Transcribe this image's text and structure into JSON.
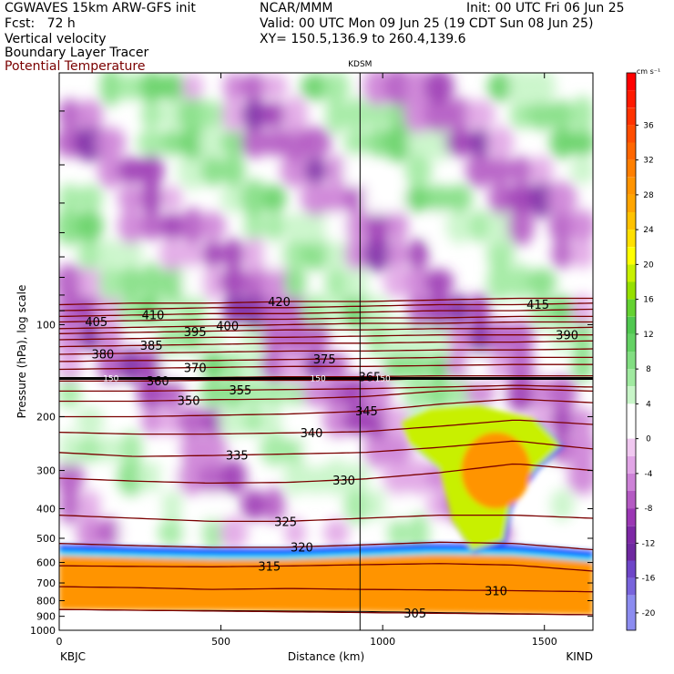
{
  "header": {
    "model": "CGWAVES 15km ARW-GFS init",
    "center": "NCAR/MMM",
    "init": "Init: 00 UTC Fri 06 Jun 25",
    "fcst": "Fcst:   72 h",
    "valid": "Valid: 00 UTC Mon 09 Jun 25 (19 CDT Sun 08 Jun 25)",
    "xy": "XY= 150.5,136.9 to 260.4,139.6",
    "field1": "Vertical velocity",
    "field2": "Boundary Layer Tracer",
    "field3": "Potential Temperature",
    "field3_color": "#7a0000"
  },
  "chart_data": {
    "type": "heatmap",
    "title": "",
    "xlabel": "Distance (km)",
    "ylabel": "Pressure (hPa), log scale",
    "xlim": [
      0,
      1650
    ],
    "ylim": [
      1000,
      15
    ],
    "y_scale": "log",
    "x_ticks": [
      "0",
      "500",
      "1000",
      "1500"
    ],
    "x_tick_values": [
      0,
      500,
      1000,
      1500
    ],
    "y_ticks": [
      "100",
      "200",
      "300",
      "400",
      "500",
      "600",
      "700",
      "800",
      "900",
      "1000"
    ],
    "y_tick_values": [
      100,
      200,
      300,
      400,
      500,
      600,
      700,
      800,
      900,
      1000
    ],
    "endpoint_left": "KBJC",
    "endpoint_right": "KIND",
    "marker": {
      "label": "KDSM",
      "distance_km": 930
    },
    "colorbar": {
      "unit": "cm s⁻¹",
      "labels": [
        "36",
        "32",
        "28",
        "24",
        "20",
        "16",
        "12",
        "8",
        "4",
        "0",
        "-4",
        "-8",
        "-12",
        "-16",
        "-20"
      ],
      "label_values": [
        36,
        32,
        28,
        24,
        20,
        16,
        12,
        8,
        4,
        0,
        -4,
        -8,
        -12,
        -16,
        -20
      ],
      "bins": [
        {
          "lo": 40,
          "color": "#ff0000"
        },
        {
          "lo": 38,
          "color": "#ff1a00"
        },
        {
          "lo": 36,
          "color": "#ff3300"
        },
        {
          "lo": 34,
          "color": "#ff4d00"
        },
        {
          "lo": 32,
          "color": "#ff6600"
        },
        {
          "lo": 30,
          "color": "#ff7f00"
        },
        {
          "lo": 28,
          "color": "#ff9400"
        },
        {
          "lo": 26,
          "color": "#ffa500"
        },
        {
          "lo": 24,
          "color": "#ffc200"
        },
        {
          "lo": 22,
          "color": "#ffe000"
        },
        {
          "lo": 20,
          "color": "#ffff00"
        },
        {
          "lo": 18,
          "color": "#c8f000"
        },
        {
          "lo": 16,
          "color": "#96e000"
        },
        {
          "lo": 14,
          "color": "#64d232"
        },
        {
          "lo": 12,
          "color": "#50c850"
        },
        {
          "lo": 10,
          "color": "#64d264"
        },
        {
          "lo": 8,
          "color": "#82de82"
        },
        {
          "lo": 6,
          "color": "#a0eaa0"
        },
        {
          "lo": 4,
          "color": "#c8f5c8"
        },
        {
          "lo": 2,
          "color": "#ffffff"
        },
        {
          "lo": 0,
          "color": "#ffffff"
        },
        {
          "lo": -2,
          "color": "#f0c8f0"
        },
        {
          "lo": -4,
          "color": "#e1a5e6"
        },
        {
          "lo": -6,
          "color": "#cd82d7"
        },
        {
          "lo": -8,
          "color": "#b45ac3"
        },
        {
          "lo": -10,
          "color": "#9b37b4"
        },
        {
          "lo": -12,
          "color": "#7d28a5"
        },
        {
          "lo": -14,
          "color": "#6e28a0"
        },
        {
          "lo": -16,
          "color": "#6e46c8"
        },
        {
          "lo": -18,
          "color": "#7864dc"
        },
        {
          "lo": -20,
          "color": "#8c8cf0"
        }
      ]
    },
    "tracer_colors": [
      "#1e3cff",
      "#00a0ff",
      "#00e6ff",
      "#60e6a0",
      "#c8f000",
      "#ffff00",
      "#ff9400"
    ],
    "isentropes": [
      {
        "theta": 305,
        "pressure": [
          855,
          860,
          865,
          870,
          875,
          880,
          885,
          890
        ],
        "label_x": 1100
      },
      {
        "theta": 310,
        "pressure": [
          720,
          725,
          735,
          730,
          735,
          738,
          742,
          748
        ],
        "label_x": 1350
      },
      {
        "theta": 315,
        "pressure": [
          615,
          618,
          620,
          616,
          610,
          605,
          612,
          640
        ],
        "label_x": 650
      },
      {
        "theta": 320,
        "pressure": [
          520,
          528,
          535,
          535,
          525,
          515,
          520,
          545
        ],
        "label_x": 750
      },
      {
        "theta": 325,
        "pressure": [
          420,
          430,
          440,
          440,
          430,
          420,
          420,
          430
        ],
        "label_x": 700
      },
      {
        "theta": 330,
        "pressure": [
          318,
          325,
          330,
          328,
          320,
          305,
          285,
          300
        ],
        "label_x": 880
      },
      {
        "theta": 335,
        "pressure": [
          262,
          270,
          268,
          265,
          262,
          252,
          240,
          255
        ],
        "label_x": 550
      },
      {
        "theta": 340,
        "pressure": [
          225,
          228,
          228,
          226,
          224,
          215,
          205,
          212
        ],
        "label_x": 780
      },
      {
        "theta": 345,
        "pressure": [
          200,
          200,
          198,
          196,
          192,
          182,
          175,
          180
        ],
        "label_x": 950
      },
      {
        "theta": 350,
        "pressure": [
          178,
          178,
          176,
          175,
          172,
          165,
          162,
          165
        ],
        "label_x": 400
      },
      {
        "theta": 355,
        "pressure": [
          165,
          165,
          164,
          163,
          162,
          160,
          158,
          160
        ],
        "label_x": 560
      },
      {
        "theta": 360,
        "pressure": [
          153,
          153,
          152,
          152,
          152,
          150,
          150,
          150
        ],
        "label_x": 305
      },
      {
        "theta": 365,
        "pressure": [
          150,
          149,
          149,
          148,
          148,
          147,
          147,
          147
        ],
        "label_x": 960
      },
      {
        "theta": 370,
        "pressure": [
          140,
          139,
          138,
          137,
          137,
          136,
          135,
          135
        ],
        "label_x": 420
      },
      {
        "theta": 375,
        "pressure": [
          132,
          131,
          131,
          130,
          129,
          128,
          128,
          128
        ],
        "label_x": 820
      },
      {
        "theta": 380,
        "pressure": [
          125,
          124,
          123,
          122,
          122,
          121,
          121,
          120
        ],
        "label_x": 135
      },
      {
        "theta": 385,
        "pressure": [
          118,
          117,
          116,
          115,
          115,
          114,
          114,
          113
        ],
        "label_x": 285
      },
      {
        "theta": 390,
        "pressure": [
          112,
          111,
          110,
          110,
          109,
          108,
          108,
          108
        ],
        "label_x": 1570
      },
      {
        "theta": 395,
        "pressure": [
          107,
          106,
          105,
          104,
          104,
          103,
          103,
          102
        ],
        "label_x": 420
      },
      {
        "theta": 400,
        "pressure": [
          103,
          102,
          101,
          100,
          99,
          99,
          98,
          98
        ],
        "label_x": 520
      },
      {
        "theta": 405,
        "pressure": [
          98,
          97,
          96,
          96,
          95,
          95,
          94,
          94
        ],
        "label_x": 115
      },
      {
        "theta": 410,
        "pressure": [
          94,
          93,
          92,
          92,
          91,
          90,
          90,
          89
        ],
        "label_x": 290
      },
      {
        "theta": 415,
        "pressure": [
          90,
          89,
          88,
          88,
          87,
          86,
          86,
          85
        ],
        "label_x": 1480
      },
      {
        "theta": 420,
        "pressure": [
          86,
          85,
          85,
          84,
          84,
          83,
          82,
          82
        ],
        "label_x": 680
      }
    ],
    "isentrope_x": [
      0,
      235,
      470,
      705,
      940,
      1175,
      1410,
      1650
    ],
    "isentrope_color": "#7a0000",
    "tropopause_pressure": 150,
    "tropopause_labels": [
      {
        "text": "150",
        "x": 160
      },
      {
        "text": "150",
        "x": 800
      },
      {
        "text": "150",
        "x": 1000
      }
    ],
    "terrain_pressure": [
      855,
      860,
      862,
      865,
      868,
      875,
      882,
      890,
      898
    ]
  }
}
